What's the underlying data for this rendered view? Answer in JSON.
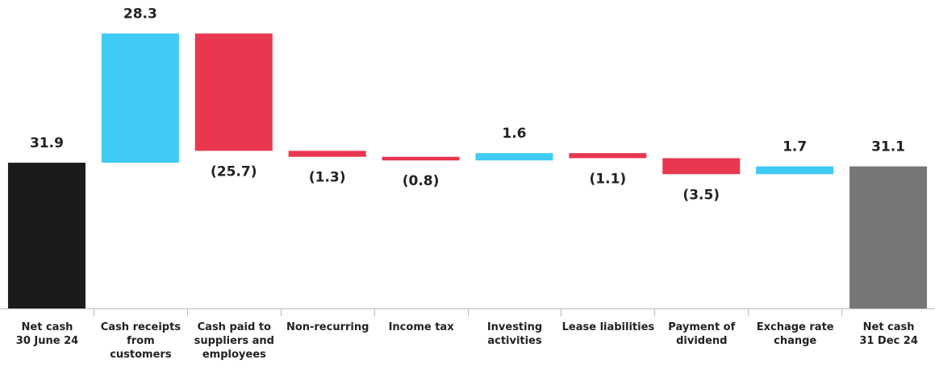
{
  "chart_data": {
    "type": "waterfall",
    "categories": [
      "Net cash\n30 June 24",
      "Cash receipts\nfrom\ncustomers",
      "Cash paid to\nsuppliers and\nemployees",
      "Non-recurring",
      "Income tax",
      "Investing\nactivities",
      "Lease liabilities",
      "Payment of\ndividend",
      "Exchage rate\nchange",
      "Net cash\n31 Dec 24"
    ],
    "values": [
      31.9,
      28.3,
      -25.7,
      -1.3,
      -0.8,
      1.6,
      -1.1,
      -3.5,
      1.7,
      31.1
    ],
    "value_labels": [
      "31.9",
      "28.3",
      "(25.7)",
      "(1.3)",
      "(0.8)",
      "1.6",
      "(1.1)",
      "(3.5)",
      "1.7",
      "31.1"
    ],
    "colors": {
      "start": "#1b1b1d",
      "increase": "#3fcbf3",
      "decrease": "#e8374f",
      "total": "#767676"
    },
    "ylim": [
      0,
      67
    ]
  }
}
